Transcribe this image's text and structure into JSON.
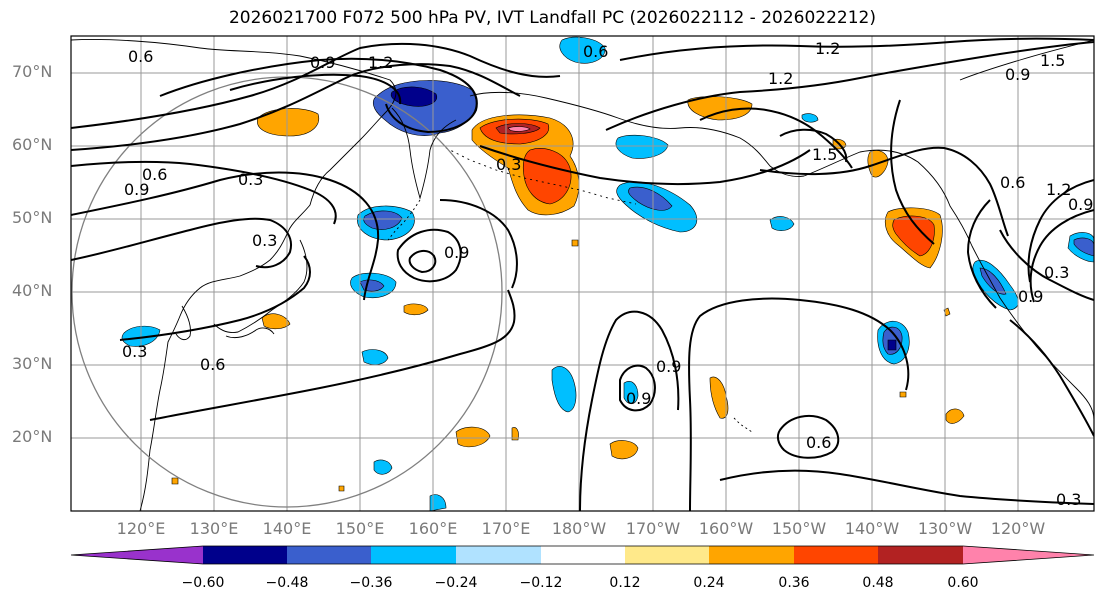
{
  "title": "2026021700 F072 500 hPa PV, IVT Landfall PC (2026022112 - 2026022212)",
  "axes": {
    "lat_labels": [
      "70°N",
      "60°N",
      "50°N",
      "40°N",
      "30°N",
      "20°N"
    ],
    "lon_labels": [
      "120°E",
      "130°E",
      "140°E",
      "150°E",
      "160°E",
      "170°E",
      "180°W",
      "170°W",
      "160°W",
      "150°W",
      "140°W",
      "130°W",
      "120°W"
    ]
  },
  "colorbar": {
    "ticks": [
      "−0.60",
      "−0.48",
      "−0.36",
      "−0.24",
      "−0.12",
      "0.12",
      "0.24",
      "0.36",
      "0.48",
      "0.60"
    ],
    "colors": [
      "#9932cc",
      "#00008b",
      "#3a5fcd",
      "#00bfff",
      "#b0e2ff",
      "#ffffff",
      "#ffe98a",
      "#ffa500",
      "#ff4500",
      "#b22222",
      "#ff82ab"
    ]
  },
  "contour_labels": [
    "0.6",
    "0.9",
    "1.2",
    "0.6",
    "1.2",
    "0.9",
    "1.5",
    "1.2",
    "0.3",
    "1.5",
    "0.3",
    "0.6",
    "0.9",
    "0.3",
    "0.9",
    "0.6",
    "1.2",
    "0.9",
    "0.3",
    "0.3",
    "0.6",
    "0.9",
    "0.9",
    "0.6",
    "0.9",
    "0.3"
  ]
}
